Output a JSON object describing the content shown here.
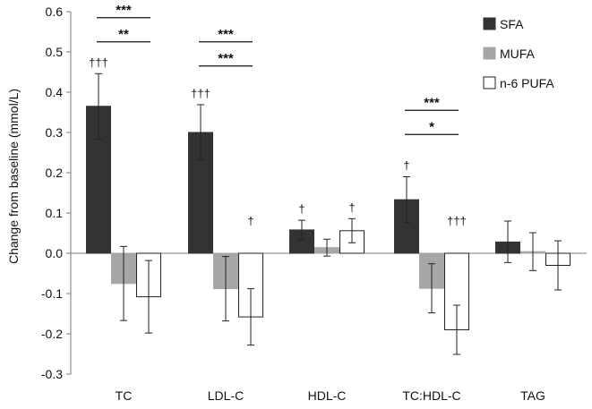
{
  "chart_data": {
    "type": "bar",
    "title": "",
    "xlabel": "",
    "ylabel": "Change from baseline (mmol/L)",
    "ylim": [
      -0.3,
      0.6
    ],
    "yticks": [
      "-0.3",
      "-0.2",
      "-0.1",
      "0.0",
      "0.1",
      "0.2",
      "0.3",
      "0.4",
      "0.5",
      "0.6"
    ],
    "grid": false,
    "legend_position": "top-right",
    "categories": [
      "TC",
      "LDL-C",
      "HDL-C",
      "TC:HDL-C",
      "TAG"
    ],
    "series": [
      {
        "name": "SFA",
        "color": "#333333",
        "values": [
          0.365,
          0.3,
          0.058,
          0.133,
          0.028
        ],
        "err_low": [
          0.283,
          0.232,
          0.034,
          0.076,
          -0.023
        ],
        "err_high": [
          0.446,
          0.369,
          0.082,
          0.19,
          0.08
        ],
        "marks": [
          "†††",
          "†††",
          "†",
          "†",
          ""
        ]
      },
      {
        "name": "MUFA",
        "color": "#a6a6a6",
        "values": [
          -0.075,
          -0.088,
          0.014,
          -0.087,
          0.004
        ],
        "err_low": [
          -0.167,
          -0.168,
          -0.007,
          -0.148,
          -0.043
        ],
        "err_high": [
          0.017,
          -0.008,
          0.035,
          -0.026,
          0.051
        ],
        "marks": [
          "",
          "",
          "",
          "",
          ""
        ]
      },
      {
        "name": "n-6 PUFA",
        "color": "#ffffff",
        "values": [
          -0.108,
          -0.158,
          0.056,
          -0.19,
          -0.03
        ],
        "err_low": [
          -0.198,
          -0.228,
          0.026,
          -0.251,
          -0.091
        ],
        "err_high": [
          -0.018,
          -0.088,
          0.086,
          -0.129,
          0.031
        ],
        "marks": [
          "",
          "†",
          "†",
          "†††",
          ""
        ]
      }
    ],
    "significance": [
      {
        "category": "TC",
        "label": "***",
        "y": 0.585
      },
      {
        "category": "TC",
        "label": "**",
        "y": 0.525
      },
      {
        "category": "LDL-C",
        "label": "***",
        "y": 0.525
      },
      {
        "category": "LDL-C",
        "label": "***",
        "y": 0.465
      },
      {
        "category": "TC:HDL-C",
        "label": "***",
        "y": 0.355
      },
      {
        "category": "TC:HDL-C",
        "label": "*",
        "y": 0.295
      }
    ]
  }
}
